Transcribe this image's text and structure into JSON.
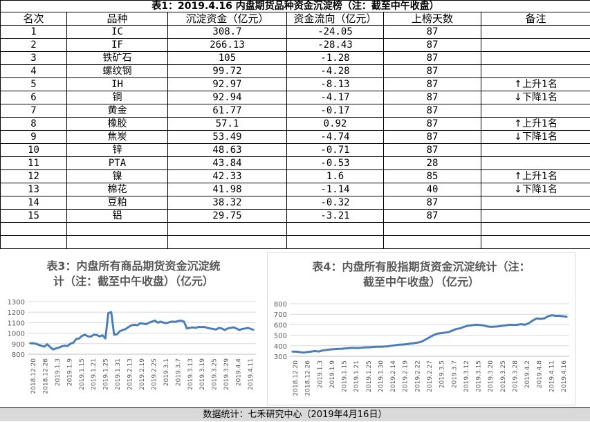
{
  "table": {
    "title": "表1：2019.4.16 内盘期货品种资金沉淀榜（注：截至中午收盘）",
    "headers": [
      "名次",
      "品种",
      "沉淀资金（亿元）",
      "资金流向（亿元）",
      "上榜天数",
      "备注"
    ],
    "rows": [
      {
        "rank": "1",
        "name": "IC",
        "capital": "308.7",
        "flow": "-24.05",
        "days": "87",
        "note": ""
      },
      {
        "rank": "2",
        "name": "IF",
        "capital": "266.13",
        "flow": "-28.43",
        "days": "87",
        "note": ""
      },
      {
        "rank": "3",
        "name": "铁矿石",
        "capital": "105",
        "flow": "-1.28",
        "days": "87",
        "note": ""
      },
      {
        "rank": "4",
        "name": "螺纹钢",
        "capital": "99.72",
        "flow": "-4.28",
        "days": "87",
        "note": ""
      },
      {
        "rank": "5",
        "name": "IH",
        "capital": "92.97",
        "flow": "-8.13",
        "days": "87",
        "note": "上升1名",
        "dir": "up"
      },
      {
        "rank": "6",
        "name": "铜",
        "capital": "92.94",
        "flow": "-4.17",
        "days": "87",
        "note": "下降1名",
        "dir": "down"
      },
      {
        "rank": "7",
        "name": "黄金",
        "capital": "61.77",
        "flow": "-0.17",
        "days": "87",
        "note": ""
      },
      {
        "rank": "8",
        "name": "橡胶",
        "capital": "57.1",
        "flow": "0.92",
        "days": "87",
        "note": "上升1名",
        "dir": "up"
      },
      {
        "rank": "9",
        "name": "焦炭",
        "capital": "53.49",
        "flow": "-4.74",
        "days": "87",
        "note": "下降1名",
        "dir": "down"
      },
      {
        "rank": "10",
        "name": "锌",
        "capital": "48.63",
        "flow": "-0.71",
        "days": "87",
        "note": ""
      },
      {
        "rank": "11",
        "name": "PTA",
        "capital": "43.84",
        "flow": "-0.53",
        "days": "28",
        "note": ""
      },
      {
        "rank": "12",
        "name": "镍",
        "capital": "42.33",
        "flow": "1.6",
        "days": "85",
        "note": "上升1名",
        "dir": "up"
      },
      {
        "rank": "13",
        "name": "棉花",
        "capital": "41.98",
        "flow": "-1.14",
        "days": "40",
        "note": "下降1名",
        "dir": "down"
      },
      {
        "rank": "14",
        "name": "豆粕",
        "capital": "38.32",
        "flow": "-0.32",
        "days": "87",
        "note": ""
      },
      {
        "rank": "15",
        "name": "铝",
        "capital": "29.75",
        "flow": "-3.21",
        "days": "87",
        "note": ""
      }
    ],
    "arrows": {
      "up": "↑",
      "down": "↓"
    }
  },
  "footer": "数据统计：七禾研究中心（2019年4月16日）",
  "colors": {
    "line": "#4a7ebb",
    "grid": "#d9d9d9",
    "axis_text": "#595959",
    "footer_bg": "#d9d9d9"
  },
  "chart_data": [
    {
      "type": "line",
      "title_lines": [
        "表3：内盘所有商品期货资金沉淀统",
        "计（注：截至中午收盘）（亿元）"
      ],
      "ylim": [
        800,
        1300
      ],
      "yticks": [
        800,
        900,
        1000,
        1100,
        1200,
        1300
      ],
      "xtick_labels": [
        "2018.12.20",
        "2018.12.26",
        "2019.1.3",
        "2019.1.9",
        "2019.1.15",
        "2019.1.21",
        "2019.1.25",
        "2019.1.31",
        "2019.2.13",
        "2019.2.19",
        "2019.2.25",
        "2019.3.1",
        "2019.3.7",
        "2019.3.13",
        "2019.3.19",
        "2019.3.25",
        "2019.3.29",
        "2019.4.4",
        "2019.4.11"
      ],
      "series": [
        {
          "values": [
            905,
            903,
            900,
            890,
            880,
            872,
            895,
            868,
            845,
            855,
            862,
            875,
            880,
            878,
            900,
            910,
            945,
            950,
            975,
            985,
            970,
            968,
            985,
            982,
            970,
            980,
            950,
            1190,
            1200,
            985,
            990,
            1020,
            1030,
            1040,
            1060,
            1075,
            1080,
            1075,
            1095,
            1090,
            1085,
            1100,
            1110,
            1120,
            1100,
            1110,
            1100,
            1095,
            1105,
            1110,
            1108,
            1115,
            1120,
            1110,
            1045,
            1050,
            1055,
            1050,
            1060,
            1058,
            1060,
            1050,
            1045,
            1040,
            1035,
            1050,
            1045,
            1030,
            1045,
            1050,
            1055,
            1045,
            1030,
            1040,
            1045,
            1050,
            1040,
            1030
          ]
        }
      ]
    },
    {
      "type": "line",
      "title_lines": [
        "表4：内盘所有股指期货资金沉淀统计（注：",
        "截至中午收盘）（亿元）"
      ],
      "ylim": [
        300,
        800
      ],
      "yticks": [
        300,
        400,
        500,
        600,
        700,
        800
      ],
      "xtick_labels": [
        "2018.12.20",
        "2018.12.26",
        "2019.1.3",
        "2019.1.9",
        "2019.1.15",
        "2019.1.21",
        "2019.1.25",
        "2019.1.30",
        "2019.2.14",
        "2019.2.19",
        "2019.2.22",
        "2019.2.27",
        "2019.3.5",
        "2019.3.7",
        "2019.3.12",
        "2019.3.15",
        "2019.3.20",
        "2019.3.25",
        "2019.3.28",
        "2019.4.2",
        "2019.4.8",
        "2019.4.11",
        "2019.4.16"
      ],
      "series": [
        {
          "values": [
            345,
            345,
            340,
            335,
            340,
            345,
            350,
            345,
            355,
            360,
            365,
            368,
            370,
            372,
            375,
            378,
            380,
            378,
            380,
            385,
            385,
            388,
            390,
            390,
            392,
            395,
            400,
            405,
            410,
            412,
            415,
            420,
            425,
            430,
            440,
            460,
            480,
            500,
            515,
            520,
            525,
            530,
            545,
            560,
            565,
            580,
            590,
            595,
            600,
            598,
            595,
            585,
            580,
            582,
            585,
            590,
            595,
            600,
            598,
            600,
            605,
            600,
            615,
            640,
            660,
            655,
            660,
            680,
            690,
            685,
            685,
            680,
            675
          ]
        }
      ]
    }
  ]
}
